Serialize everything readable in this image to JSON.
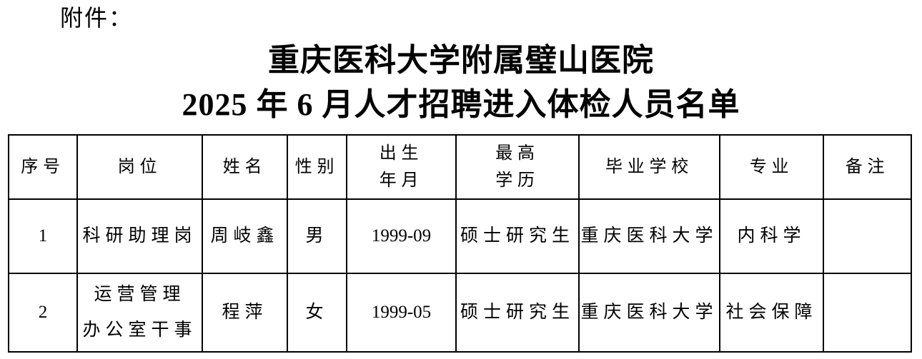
{
  "page": {
    "attachment_label": "附件：",
    "title_lines": [
      "重庆医科大学附属璧山医院",
      "2025 年 6 月人才招聘进入体检人员名单"
    ]
  },
  "table": {
    "columns": [
      {
        "key": "index",
        "label": "序号"
      },
      {
        "key": "position",
        "label": "岗位"
      },
      {
        "key": "name",
        "label": "姓名"
      },
      {
        "key": "gender",
        "label": "性别"
      },
      {
        "key": "birth-date",
        "label": [
          "出生",
          "年月"
        ]
      },
      {
        "key": "highest-education",
        "label": [
          "最高",
          "学历"
        ]
      },
      {
        "key": "graduate-school",
        "label": "毕业学校"
      },
      {
        "key": "major",
        "label": "专业"
      },
      {
        "key": "remarks",
        "label": "备注"
      }
    ],
    "rows": [
      [
        "1",
        "科研助理岗",
        "周岐鑫",
        "男",
        "1999-09",
        "硕士研究生",
        "重庆医科大学",
        "内科学",
        ""
      ],
      [
        "2",
        [
          "运营管理",
          "办公室干事"
        ],
        "程萍",
        "女",
        "1999-05",
        "硕士研究生",
        "重庆医科大学",
        "社会保障",
        ""
      ]
    ]
  }
}
